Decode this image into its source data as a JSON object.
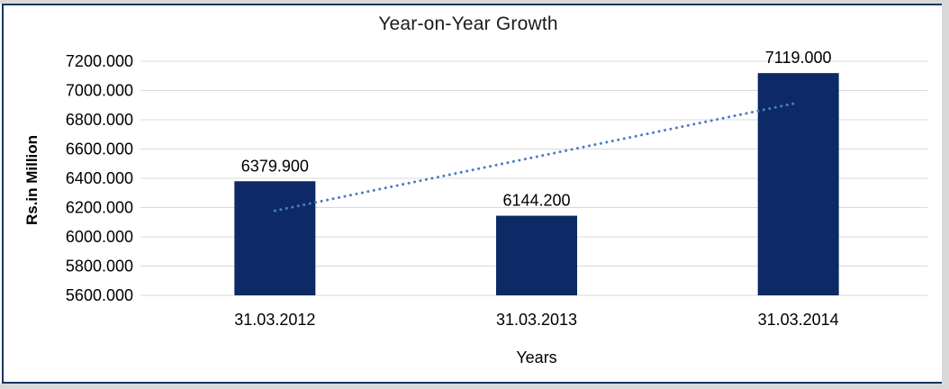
{
  "frame": {
    "page_background": "#D9D9D9",
    "chart_background": "#FFFFFF",
    "border_color": "#17375E"
  },
  "chart_data": {
    "type": "bar",
    "title": "Year-on-Year Growth",
    "xlabel": "Years",
    "ylabel": "Rs.in Million",
    "categories": [
      "31.03.2012",
      "31.03.2013",
      "31.03.2014"
    ],
    "values": [
      6379.9,
      6144.2,
      7119.0
    ],
    "data_labels": [
      "6379.900",
      "6144.200",
      "7119.000"
    ],
    "ylim": [
      5600,
      7200
    ],
    "y_tick_step": 200,
    "y_ticks": [
      "5600.000",
      "5800.000",
      "6000.000",
      "6200.000",
      "6400.000",
      "6600.000",
      "6800.000",
      "7000.000",
      "7200.000"
    ],
    "grid": true,
    "legend": "none",
    "bar_color": "#0D2A66",
    "gridline_color": "#D9D9D9",
    "trendline": {
      "type": "linear",
      "style": "dotted",
      "color": "#4A7FC1",
      "from": {
        "category_index": 0,
        "value": 6178
      },
      "to": {
        "category_index": 2,
        "value": 6917
      }
    }
  }
}
